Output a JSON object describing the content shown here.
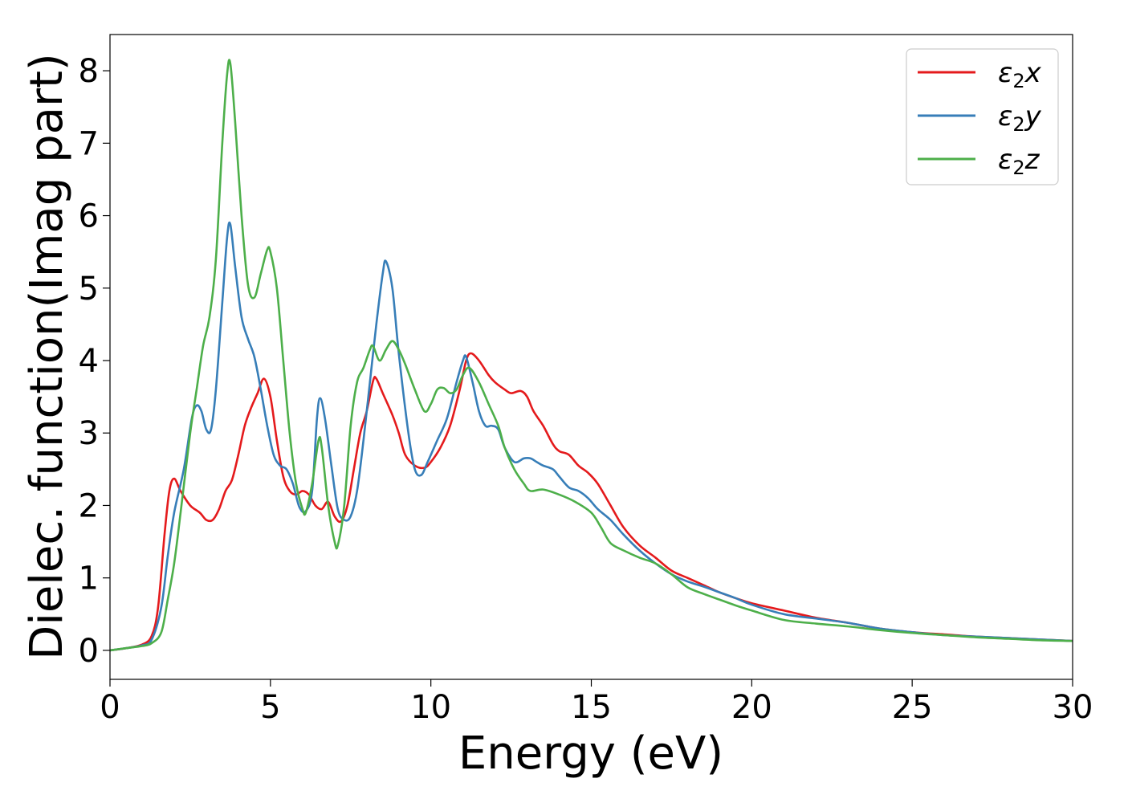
{
  "chart_data": {
    "type": "line",
    "xlabel": "Energy (eV)",
    "ylabel": "Dielec. function(Imag part)",
    "xlim": [
      0,
      30
    ],
    "ylim": [
      -0.4,
      8.5
    ],
    "xticks": [
      0,
      5,
      10,
      15,
      20,
      25,
      30
    ],
    "yticks": [
      0,
      1,
      2,
      3,
      4,
      5,
      6,
      7,
      8
    ],
    "grid": false,
    "legend_position": "top-right",
    "series": [
      {
        "name": "ε2x",
        "legend_main": "ε",
        "legend_sub": "2",
        "legend_tail": "x",
        "color": "#e41a1c",
        "points": [
          [
            0,
            0.0
          ],
          [
            0.5,
            0.03
          ],
          [
            1.0,
            0.08
          ],
          [
            1.3,
            0.2
          ],
          [
            1.5,
            0.6
          ],
          [
            1.7,
            1.6
          ],
          [
            1.85,
            2.2
          ],
          [
            2.0,
            2.37
          ],
          [
            2.2,
            2.2
          ],
          [
            2.5,
            2.0
          ],
          [
            2.8,
            1.9
          ],
          [
            3.0,
            1.8
          ],
          [
            3.2,
            1.8
          ],
          [
            3.4,
            1.95
          ],
          [
            3.6,
            2.2
          ],
          [
            3.8,
            2.35
          ],
          [
            4.0,
            2.7
          ],
          [
            4.2,
            3.1
          ],
          [
            4.4,
            3.35
          ],
          [
            4.6,
            3.55
          ],
          [
            4.8,
            3.75
          ],
          [
            5.0,
            3.5
          ],
          [
            5.2,
            2.9
          ],
          [
            5.4,
            2.4
          ],
          [
            5.6,
            2.2
          ],
          [
            5.8,
            2.15
          ],
          [
            6.0,
            2.2
          ],
          [
            6.2,
            2.15
          ],
          [
            6.4,
            2.0
          ],
          [
            6.6,
            1.95
          ],
          [
            6.8,
            2.05
          ],
          [
            7.0,
            1.85
          ],
          [
            7.2,
            1.78
          ],
          [
            7.4,
            2.0
          ],
          [
            7.6,
            2.5
          ],
          [
            7.8,
            3.0
          ],
          [
            8.0,
            3.3
          ],
          [
            8.2,
            3.72
          ],
          [
            8.3,
            3.75
          ],
          [
            8.5,
            3.55
          ],
          [
            8.8,
            3.25
          ],
          [
            9.0,
            3.0
          ],
          [
            9.2,
            2.7
          ],
          [
            9.5,
            2.55
          ],
          [
            9.8,
            2.52
          ],
          [
            10.0,
            2.6
          ],
          [
            10.3,
            2.8
          ],
          [
            10.6,
            3.1
          ],
          [
            10.9,
            3.6
          ],
          [
            11.1,
            4.0
          ],
          [
            11.25,
            4.1
          ],
          [
            11.5,
            4.0
          ],
          [
            11.8,
            3.8
          ],
          [
            12.0,
            3.7
          ],
          [
            12.3,
            3.6
          ],
          [
            12.5,
            3.55
          ],
          [
            12.8,
            3.58
          ],
          [
            13.0,
            3.5
          ],
          [
            13.2,
            3.3
          ],
          [
            13.5,
            3.1
          ],
          [
            13.8,
            2.85
          ],
          [
            14.0,
            2.75
          ],
          [
            14.3,
            2.7
          ],
          [
            14.6,
            2.55
          ],
          [
            14.9,
            2.45
          ],
          [
            15.2,
            2.3
          ],
          [
            15.6,
            2.0
          ],
          [
            16.0,
            1.7
          ],
          [
            16.5,
            1.45
          ],
          [
            17.0,
            1.28
          ],
          [
            17.5,
            1.1
          ],
          [
            18.0,
            1.0
          ],
          [
            18.5,
            0.9
          ],
          [
            19.0,
            0.8
          ],
          [
            19.5,
            0.72
          ],
          [
            20.0,
            0.65
          ],
          [
            21.0,
            0.55
          ],
          [
            22.0,
            0.45
          ],
          [
            23.0,
            0.38
          ],
          [
            24.0,
            0.3
          ],
          [
            25.0,
            0.25
          ],
          [
            26.0,
            0.22
          ],
          [
            27.0,
            0.19
          ],
          [
            28.0,
            0.17
          ],
          [
            29.0,
            0.15
          ],
          [
            30.0,
            0.13
          ]
        ]
      },
      {
        "name": "ε2y",
        "legend_main": "ε",
        "legend_sub": "2",
        "legend_tail": "y",
        "color": "#377eb8",
        "points": [
          [
            0,
            0.0
          ],
          [
            0.5,
            0.03
          ],
          [
            1.0,
            0.07
          ],
          [
            1.3,
            0.15
          ],
          [
            1.6,
            0.6
          ],
          [
            1.8,
            1.3
          ],
          [
            2.0,
            1.9
          ],
          [
            2.3,
            2.5
          ],
          [
            2.55,
            3.2
          ],
          [
            2.7,
            3.38
          ],
          [
            2.85,
            3.3
          ],
          [
            3.0,
            3.05
          ],
          [
            3.15,
            3.05
          ],
          [
            3.3,
            3.6
          ],
          [
            3.5,
            4.8
          ],
          [
            3.65,
            5.7
          ],
          [
            3.75,
            5.88
          ],
          [
            3.9,
            5.3
          ],
          [
            4.1,
            4.6
          ],
          [
            4.3,
            4.3
          ],
          [
            4.5,
            4.05
          ],
          [
            4.7,
            3.6
          ],
          [
            4.9,
            3.1
          ],
          [
            5.1,
            2.7
          ],
          [
            5.3,
            2.55
          ],
          [
            5.5,
            2.5
          ],
          [
            5.7,
            2.3
          ],
          [
            5.9,
            1.98
          ],
          [
            6.1,
            1.92
          ],
          [
            6.3,
            2.2
          ],
          [
            6.45,
            3.2
          ],
          [
            6.55,
            3.48
          ],
          [
            6.7,
            3.2
          ],
          [
            6.9,
            2.55
          ],
          [
            7.1,
            1.95
          ],
          [
            7.3,
            1.8
          ],
          [
            7.5,
            1.85
          ],
          [
            7.7,
            2.2
          ],
          [
            7.9,
            2.9
          ],
          [
            8.1,
            3.7
          ],
          [
            8.3,
            4.5
          ],
          [
            8.5,
            5.2
          ],
          [
            8.6,
            5.37
          ],
          [
            8.8,
            5.0
          ],
          [
            9.0,
            4.1
          ],
          [
            9.3,
            3.0
          ],
          [
            9.5,
            2.5
          ],
          [
            9.7,
            2.42
          ],
          [
            9.9,
            2.6
          ],
          [
            10.2,
            2.9
          ],
          [
            10.5,
            3.2
          ],
          [
            10.8,
            3.7
          ],
          [
            11.0,
            4.0
          ],
          [
            11.1,
            4.05
          ],
          [
            11.3,
            3.7
          ],
          [
            11.5,
            3.3
          ],
          [
            11.7,
            3.1
          ],
          [
            11.9,
            3.1
          ],
          [
            12.1,
            3.05
          ],
          [
            12.3,
            2.8
          ],
          [
            12.6,
            2.6
          ],
          [
            12.9,
            2.65
          ],
          [
            13.1,
            2.65
          ],
          [
            13.3,
            2.6
          ],
          [
            13.5,
            2.55
          ],
          [
            13.8,
            2.5
          ],
          [
            14.0,
            2.4
          ],
          [
            14.3,
            2.25
          ],
          [
            14.6,
            2.2
          ],
          [
            14.9,
            2.1
          ],
          [
            15.2,
            1.95
          ],
          [
            15.6,
            1.8
          ],
          [
            16.0,
            1.6
          ],
          [
            16.5,
            1.38
          ],
          [
            17.0,
            1.2
          ],
          [
            17.5,
            1.05
          ],
          [
            18.0,
            0.95
          ],
          [
            18.5,
            0.88
          ],
          [
            19.0,
            0.8
          ],
          [
            19.5,
            0.72
          ],
          [
            20.0,
            0.63
          ],
          [
            21.0,
            0.5
          ],
          [
            22.0,
            0.44
          ],
          [
            23.0,
            0.38
          ],
          [
            24.0,
            0.3
          ],
          [
            25.0,
            0.25
          ],
          [
            26.0,
            0.21
          ],
          [
            27.0,
            0.19
          ],
          [
            28.0,
            0.17
          ],
          [
            29.0,
            0.15
          ],
          [
            30.0,
            0.13
          ]
        ]
      },
      {
        "name": "ε2z",
        "legend_main": "ε",
        "legend_sub": "2",
        "legend_tail": "z",
        "color": "#4daf4a",
        "points": [
          [
            0,
            0.0
          ],
          [
            0.5,
            0.03
          ],
          [
            1.0,
            0.06
          ],
          [
            1.3,
            0.1
          ],
          [
            1.6,
            0.25
          ],
          [
            1.8,
            0.7
          ],
          [
            2.0,
            1.2
          ],
          [
            2.2,
            1.9
          ],
          [
            2.5,
            3.0
          ],
          [
            2.7,
            3.6
          ],
          [
            2.9,
            4.2
          ],
          [
            3.1,
            4.6
          ],
          [
            3.3,
            5.4
          ],
          [
            3.5,
            7.0
          ],
          [
            3.65,
            7.95
          ],
          [
            3.75,
            8.1
          ],
          [
            3.9,
            7.3
          ],
          [
            4.1,
            6.0
          ],
          [
            4.3,
            5.05
          ],
          [
            4.5,
            4.87
          ],
          [
            4.7,
            5.2
          ],
          [
            4.9,
            5.53
          ],
          [
            5.0,
            5.5
          ],
          [
            5.2,
            5.0
          ],
          [
            5.4,
            4.0
          ],
          [
            5.6,
            3.0
          ],
          [
            5.8,
            2.3
          ],
          [
            6.0,
            1.95
          ],
          [
            6.1,
            1.9
          ],
          [
            6.3,
            2.3
          ],
          [
            6.5,
            2.9
          ],
          [
            6.6,
            2.8
          ],
          [
            6.8,
            2.0
          ],
          [
            7.0,
            1.5
          ],
          [
            7.1,
            1.45
          ],
          [
            7.3,
            2.0
          ],
          [
            7.5,
            3.1
          ],
          [
            7.7,
            3.7
          ],
          [
            7.9,
            3.9
          ],
          [
            8.1,
            4.15
          ],
          [
            8.2,
            4.2
          ],
          [
            8.4,
            4.0
          ],
          [
            8.6,
            4.15
          ],
          [
            8.8,
            4.27
          ],
          [
            9.0,
            4.15
          ],
          [
            9.2,
            3.95
          ],
          [
            9.5,
            3.6
          ],
          [
            9.8,
            3.3
          ],
          [
            10.0,
            3.4
          ],
          [
            10.2,
            3.6
          ],
          [
            10.4,
            3.62
          ],
          [
            10.6,
            3.55
          ],
          [
            10.8,
            3.6
          ],
          [
            11.0,
            3.8
          ],
          [
            11.2,
            3.9
          ],
          [
            11.5,
            3.7
          ],
          [
            11.8,
            3.4
          ],
          [
            12.1,
            3.1
          ],
          [
            12.3,
            2.8
          ],
          [
            12.6,
            2.5
          ],
          [
            12.9,
            2.3
          ],
          [
            13.1,
            2.2
          ],
          [
            13.5,
            2.22
          ],
          [
            14.0,
            2.15
          ],
          [
            14.5,
            2.05
          ],
          [
            15.0,
            1.9
          ],
          [
            15.3,
            1.7
          ],
          [
            15.6,
            1.48
          ],
          [
            16.0,
            1.38
          ],
          [
            16.5,
            1.28
          ],
          [
            17.0,
            1.2
          ],
          [
            17.5,
            1.05
          ],
          [
            18.0,
            0.87
          ],
          [
            18.5,
            0.78
          ],
          [
            19.0,
            0.7
          ],
          [
            19.5,
            0.62
          ],
          [
            20.0,
            0.55
          ],
          [
            21.0,
            0.42
          ],
          [
            22.0,
            0.37
          ],
          [
            23.0,
            0.33
          ],
          [
            24.0,
            0.28
          ],
          [
            25.0,
            0.24
          ],
          [
            26.0,
            0.21
          ],
          [
            27.0,
            0.18
          ],
          [
            28.0,
            0.16
          ],
          [
            29.0,
            0.14
          ],
          [
            30.0,
            0.13
          ]
        ]
      }
    ]
  }
}
